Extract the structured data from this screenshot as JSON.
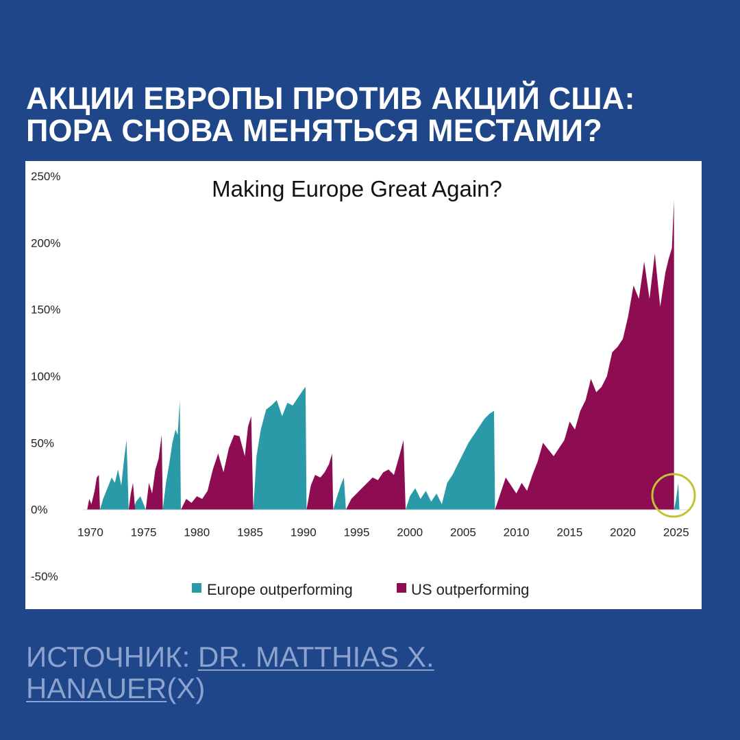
{
  "header": {
    "title_line1": "АКЦИИ ЕВРОПЫ ПРОТИВ АКЦИЙ США:",
    "title_line2": "ПОРА СНОВА МЕНЯТЬСЯ МЕСТАМИ?"
  },
  "source": {
    "prefix": "ИСТОЧНИК: ",
    "author_part1": "DR. MATTHIAS X.",
    "author_part2": "HANAUER",
    "suffix": "(X)"
  },
  "colors": {
    "background": "#1f4688",
    "europe": "#2a9aa8",
    "us": "#8e0d52",
    "highlight_circle": "#c2c232"
  },
  "chart_data": {
    "type": "area",
    "title": "Making Europe Great Again?",
    "xlabel": "",
    "ylabel": "",
    "x_ticks": [
      1970,
      1975,
      1980,
      1985,
      1990,
      1995,
      2000,
      2005,
      2010,
      2015,
      2020,
      2025
    ],
    "xlim": [
      1969.3,
      2026.3
    ],
    "y_ticks": [
      -50,
      0,
      50,
      100,
      150,
      200,
      250
    ],
    "y_tick_labels": [
      "-50%",
      "0%",
      "50%",
      "100%",
      "150%",
      "200%",
      "250%"
    ],
    "ylim": [
      -50,
      250
    ],
    "grid": false,
    "legend_position": "bottom-center",
    "annotation": "circle highlighting Europe outperforming in 2025",
    "series": [
      {
        "name": "Europe outperforming",
        "segments": [
          [
            [
              1970.9,
              0
            ],
            [
              1971.2,
              8
            ],
            [
              1971.6,
              16
            ],
            [
              1972.0,
              24
            ],
            [
              1972.3,
              20
            ],
            [
              1972.6,
              30
            ],
            [
              1972.9,
              18
            ],
            [
              1973.2,
              40
            ],
            [
              1973.4,
              52
            ],
            [
              1973.6,
              0
            ]
          ],
          [
            [
              1974.0,
              0
            ],
            [
              1974.3,
              6
            ],
            [
              1974.7,
              10
            ],
            [
              1975.0,
              4
            ],
            [
              1975.2,
              0
            ]
          ],
          [
            [
              1976.8,
              0
            ],
            [
              1977.1,
              20
            ],
            [
              1977.4,
              34
            ],
            [
              1977.7,
              50
            ],
            [
              1978.0,
              60
            ],
            [
              1978.2,
              56
            ],
            [
              1978.4,
              82
            ],
            [
              1978.5,
              0
            ]
          ],
          [
            [
              1985.3,
              0
            ],
            [
              1985.6,
              40
            ],
            [
              1986.0,
              60
            ],
            [
              1986.5,
              75
            ],
            [
              1987.0,
              78
            ],
            [
              1987.5,
              82
            ],
            [
              1988.0,
              70
            ],
            [
              1988.5,
              80
            ],
            [
              1989.0,
              78
            ],
            [
              1989.5,
              84
            ],
            [
              1990.0,
              90
            ],
            [
              1990.2,
              92
            ],
            [
              1990.3,
              0
            ]
          ],
          [
            [
              1992.8,
              0
            ],
            [
              1993.1,
              8
            ],
            [
              1993.5,
              18
            ],
            [
              1993.8,
              24
            ],
            [
              1994.0,
              0
            ]
          ],
          [
            [
              1999.6,
              0
            ],
            [
              2000.0,
              10
            ],
            [
              2000.5,
              16
            ],
            [
              2001.0,
              8
            ],
            [
              2001.5,
              14
            ],
            [
              2002.0,
              6
            ],
            [
              2002.5,
              12
            ],
            [
              2003.0,
              4
            ],
            [
              2003.5,
              20
            ],
            [
              2004.0,
              26
            ],
            [
              2004.5,
              34
            ],
            [
              2005.0,
              42
            ],
            [
              2005.5,
              50
            ],
            [
              2006.0,
              56
            ],
            [
              2006.5,
              62
            ],
            [
              2007.0,
              68
            ],
            [
              2007.5,
              72
            ],
            [
              2007.9,
              74
            ],
            [
              2008.0,
              0
            ]
          ],
          [
            [
              2024.8,
              0
            ],
            [
              2025.0,
              8
            ],
            [
              2025.2,
              20
            ],
            [
              2025.3,
              0
            ]
          ]
        ]
      },
      {
        "name": "US outperforming",
        "segments": [
          [
            [
              1969.7,
              0
            ],
            [
              1969.9,
              8
            ],
            [
              1970.1,
              4
            ],
            [
              1970.4,
              14
            ],
            [
              1970.6,
              24
            ],
            [
              1970.8,
              26
            ],
            [
              1970.9,
              0
            ]
          ],
          [
            [
              1973.6,
              0
            ],
            [
              1973.8,
              12
            ],
            [
              1974.0,
              20
            ],
            [
              1974.2,
              0
            ]
          ],
          [
            [
              1975.2,
              0
            ],
            [
              1975.5,
              20
            ],
            [
              1975.8,
              12
            ],
            [
              1976.1,
              30
            ],
            [
              1976.4,
              38
            ],
            [
              1976.7,
              56
            ],
            [
              1976.8,
              0
            ]
          ],
          [
            [
              1978.5,
              0
            ],
            [
              1979.0,
              8
            ],
            [
              1979.5,
              5
            ],
            [
              1980.0,
              10
            ],
            [
              1980.5,
              8
            ],
            [
              1981.0,
              14
            ],
            [
              1981.5,
              30
            ],
            [
              1982.0,
              42
            ],
            [
              1982.5,
              28
            ],
            [
              1983.0,
              46
            ],
            [
              1983.5,
              56
            ],
            [
              1984.0,
              55
            ],
            [
              1984.5,
              40
            ],
            [
              1984.8,
              62
            ],
            [
              1985.1,
              70
            ],
            [
              1985.3,
              0
            ]
          ],
          [
            [
              1990.3,
              0
            ],
            [
              1990.7,
              18
            ],
            [
              1991.1,
              26
            ],
            [
              1991.6,
              24
            ],
            [
              1992.0,
              28
            ],
            [
              1992.4,
              34
            ],
            [
              1992.7,
              42
            ],
            [
              1992.8,
              0
            ]
          ],
          [
            [
              1994.0,
              0
            ],
            [
              1994.5,
              8
            ],
            [
              1995.0,
              12
            ],
            [
              1995.5,
              16
            ],
            [
              1996.0,
              20
            ],
            [
              1996.5,
              24
            ],
            [
              1997.0,
              22
            ],
            [
              1997.5,
              28
            ],
            [
              1998.0,
              30
            ],
            [
              1998.5,
              26
            ],
            [
              1999.0,
              40
            ],
            [
              1999.4,
              52
            ],
            [
              1999.6,
              0
            ]
          ],
          [
            [
              2008.0,
              0
            ],
            [
              2008.5,
              12
            ],
            [
              2009.0,
              24
            ],
            [
              2009.5,
              18
            ],
            [
              2010.0,
              12
            ],
            [
              2010.5,
              20
            ],
            [
              2011.0,
              14
            ],
            [
              2011.5,
              26
            ],
            [
              2012.0,
              36
            ],
            [
              2012.5,
              50
            ],
            [
              2013.0,
              45
            ],
            [
              2013.5,
              40
            ],
            [
              2014.0,
              46
            ],
            [
              2014.5,
              52
            ],
            [
              2015.0,
              66
            ],
            [
              2015.5,
              60
            ],
            [
              2016.0,
              74
            ],
            [
              2016.5,
              82
            ],
            [
              2017.0,
              98
            ],
            [
              2017.5,
              88
            ],
            [
              2018.0,
              92
            ],
            [
              2018.5,
              100
            ],
            [
              2019.0,
              118
            ],
            [
              2019.5,
              122
            ],
            [
              2020.0,
              128
            ],
            [
              2020.5,
              145
            ],
            [
              2021.0,
              168
            ],
            [
              2021.5,
              158
            ],
            [
              2022.0,
              186
            ],
            [
              2022.5,
              158
            ],
            [
              2023.0,
              192
            ],
            [
              2023.5,
              152
            ],
            [
              2024.0,
              178
            ],
            [
              2024.3,
              188
            ],
            [
              2024.6,
              196
            ],
            [
              2024.8,
              232
            ],
            [
              2024.8,
              0
            ]
          ]
        ]
      }
    ]
  }
}
